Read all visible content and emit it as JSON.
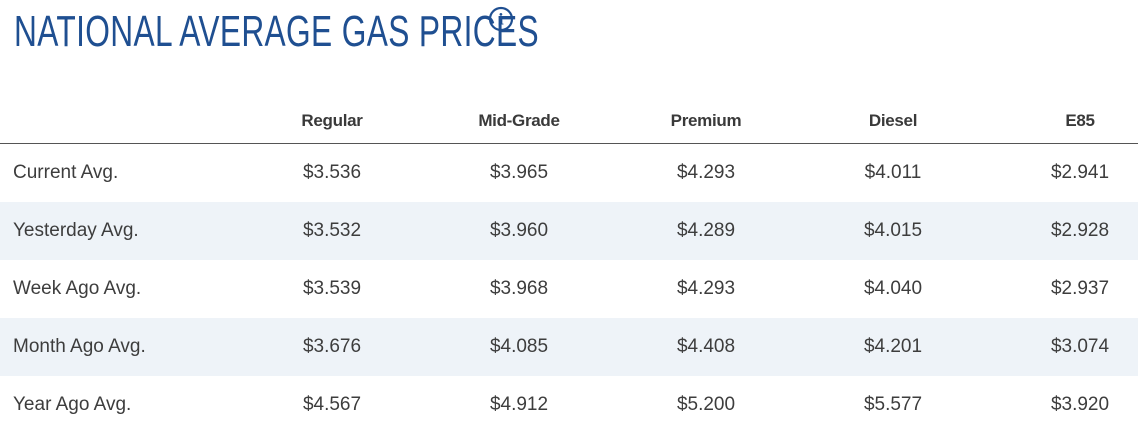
{
  "header": {
    "title": "NATIONAL AVERAGE GAS PRICES",
    "info_icon": "info-icon",
    "info_icon_glyph": "i"
  },
  "colors": {
    "title": "#1f4f91",
    "row_shade": "#eef3f8",
    "text": "#3d3d3d",
    "divider": "#555555"
  },
  "table": {
    "columns": [
      "Regular",
      "Mid-Grade",
      "Premium",
      "Diesel",
      "E85"
    ],
    "rows": [
      {
        "label": "Current Avg.",
        "values": [
          "$3.536",
          "$3.965",
          "$4.293",
          "$4.011",
          "$2.941"
        ]
      },
      {
        "label": "Yesterday Avg.",
        "values": [
          "$3.532",
          "$3.960",
          "$4.289",
          "$4.015",
          "$2.928"
        ]
      },
      {
        "label": "Week Ago Avg.",
        "values": [
          "$3.539",
          "$3.968",
          "$4.293",
          "$4.040",
          "$2.937"
        ]
      },
      {
        "label": "Month Ago Avg.",
        "values": [
          "$3.676",
          "$4.085",
          "$4.408",
          "$4.201",
          "$3.074"
        ]
      },
      {
        "label": "Year Ago Avg.",
        "values": [
          "$4.567",
          "$4.912",
          "$5.200",
          "$5.577",
          "$3.920"
        ]
      }
    ]
  }
}
